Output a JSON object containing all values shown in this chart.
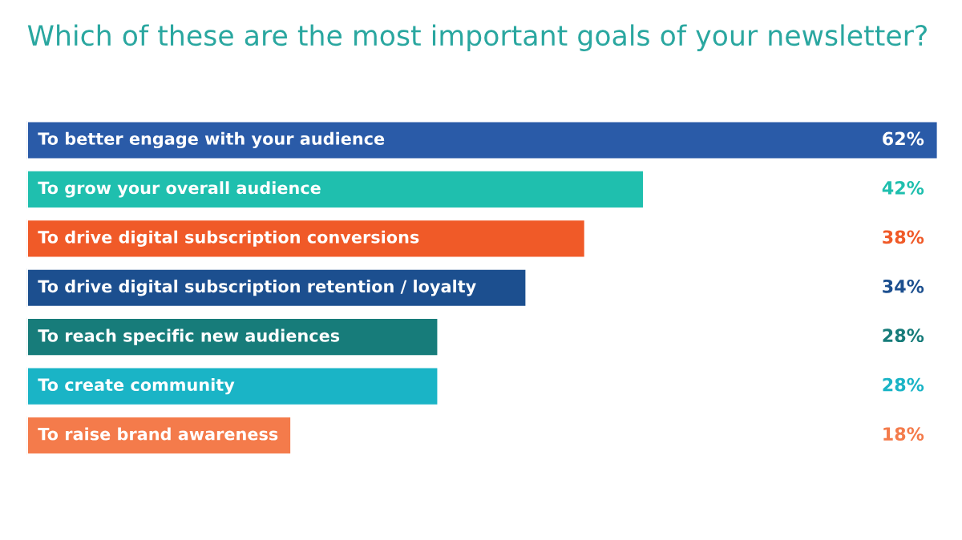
{
  "chart_data": {
    "type": "bar",
    "orientation": "horizontal",
    "title": "Which of these are the most important goals of your newsletter?",
    "categories": [
      "To better engage with your audience",
      "To grow your overall audience",
      "To drive digital subscription conversions",
      "To drive digital subscription retention / loyalty",
      "To reach specific new audiences",
      "To create community",
      "To raise brand awareness"
    ],
    "values": [
      62,
      42,
      38,
      34,
      28,
      28,
      18
    ],
    "value_labels": [
      "62%",
      "42%",
      "38%",
      "34%",
      "28%",
      "28%",
      "18%"
    ],
    "colors": [
      "#2a5ba8",
      "#1fbfae",
      "#f05a28",
      "#1c4f8f",
      "#177c7a",
      "#1ab4c6",
      "#f47b4b"
    ]
  }
}
